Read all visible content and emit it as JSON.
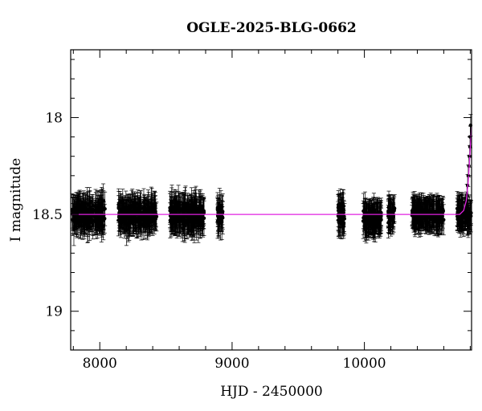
{
  "chart_data": {
    "type": "scatter",
    "title": "OGLE-2025-BLG-0662",
    "xlabel": "HJD - 2450000",
    "ylabel": "I magnitude",
    "xlim": [
      7780,
      10810
    ],
    "ylim": [
      19.2,
      17.65
    ],
    "y_inverted": true,
    "x_ticks": [
      8000,
      9000,
      10000
    ],
    "y_ticks": [
      18,
      18.5,
      19
    ],
    "x_tick_labels": [
      "8000",
      "9000",
      "10000"
    ],
    "y_tick_labels": [
      "18",
      "18.5",
      "19"
    ],
    "grid": false,
    "legend": "none",
    "colors": {
      "data": "#000000",
      "model": "#e020e0",
      "axes": "#000000"
    },
    "series": [
      {
        "kind": "observations",
        "typical_error": 0.07,
        "seasons": [
          {
            "x_range": [
              7790,
              8040
            ],
            "mean": 18.5,
            "scatter": 0.05
          },
          {
            "x_range": [
              8140,
              8430
            ],
            "mean": 18.5,
            "scatter": 0.05
          },
          {
            "x_range": [
              8530,
              8790
            ],
            "mean": 18.5,
            "scatter": 0.05
          },
          {
            "x_range": [
              8890,
              8930
            ],
            "mean": 18.5,
            "scatter": 0.05
          },
          {
            "x_range": [
              9800,
              9850
            ],
            "mean": 18.5,
            "scatter": 0.05
          },
          {
            "x_range": [
              9990,
              10130
            ],
            "mean": 18.52,
            "scatter": 0.04
          },
          {
            "x_range": [
              10180,
              10230
            ],
            "mean": 18.5,
            "scatter": 0.04
          },
          {
            "x_range": [
              10360,
              10600
            ],
            "mean": 18.5,
            "scatter": 0.03
          },
          {
            "x_range": [
              10700,
              10810
            ],
            "mean": 18.5,
            "scatter": 0.03
          }
        ],
        "rising_points": [
          {
            "x": 10770,
            "y": 18.44
          },
          {
            "x": 10775,
            "y": 18.4
          },
          {
            "x": 10780,
            "y": 18.35
          },
          {
            "x": 10785,
            "y": 18.3
          },
          {
            "x": 10790,
            "y": 18.25
          },
          {
            "x": 10795,
            "y": 18.2
          },
          {
            "x": 10798,
            "y": 18.15
          },
          {
            "x": 10800,
            "y": 18.1
          },
          {
            "x": 10803,
            "y": 18.04
          }
        ]
      },
      {
        "kind": "model",
        "baseline": 18.5,
        "points": [
          {
            "x": 7780,
            "y": 18.5
          },
          {
            "x": 10720,
            "y": 18.5
          },
          {
            "x": 10750,
            "y": 18.48
          },
          {
            "x": 10770,
            "y": 18.43
          },
          {
            "x": 10785,
            "y": 18.33
          },
          {
            "x": 10795,
            "y": 18.22
          },
          {
            "x": 10805,
            "y": 18.1
          },
          {
            "x": 10810,
            "y": 18.05
          }
        ]
      }
    ]
  }
}
